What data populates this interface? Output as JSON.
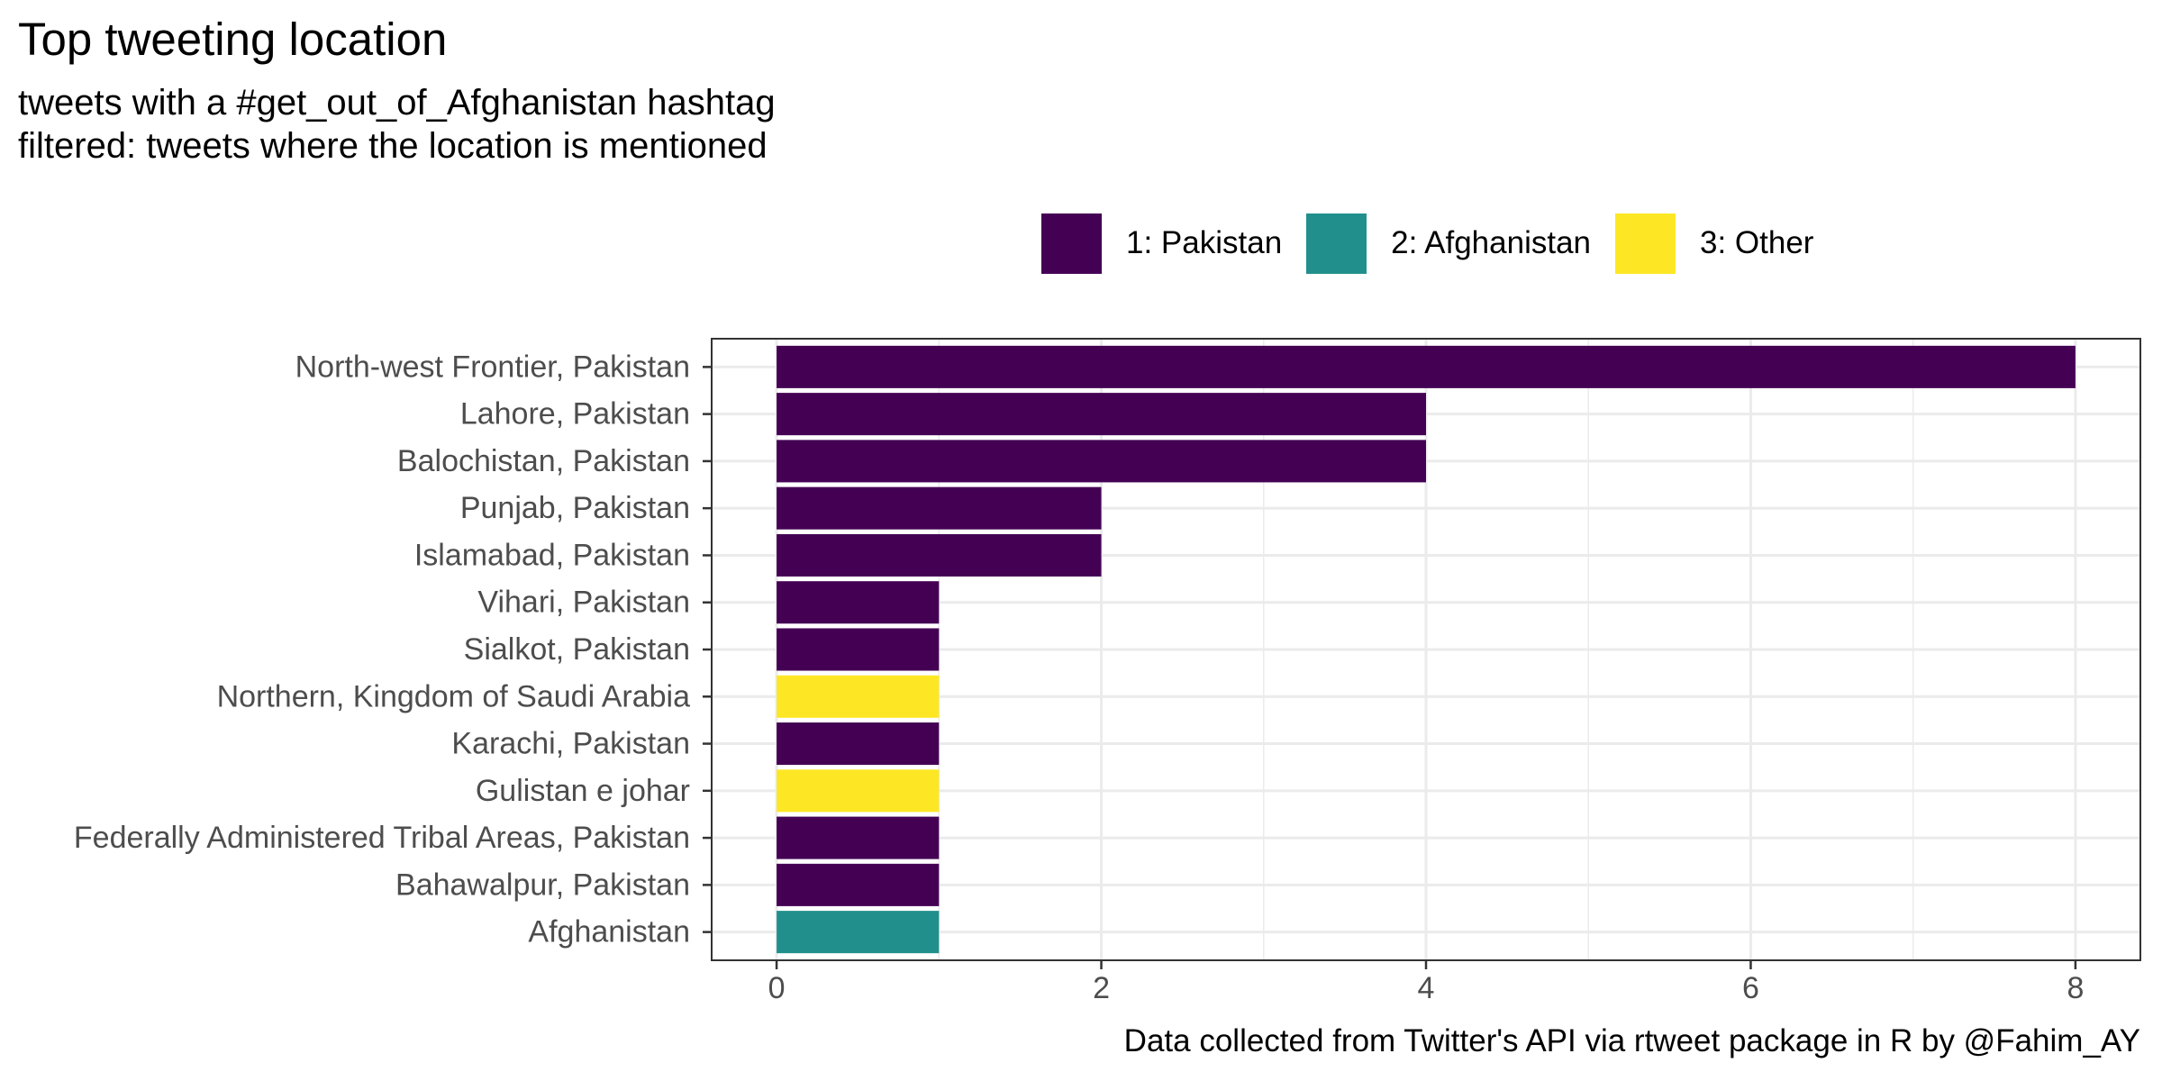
{
  "title": "Top tweeting location",
  "subtitle_lines": [
    "tweets with a #get_out_of_Afghanistan hashtag",
    "filtered: tweets where the location is mentioned"
  ],
  "caption": "Data collected from Twitter's API via rtweet package in R by @Fahim_AY",
  "legend": [
    {
      "label": "1: Pakistan",
      "color": "#440154"
    },
    {
      "label": "2: Afghanistan",
      "color": "#21908C"
    },
    {
      "label": "3: Other",
      "color": "#FDE725"
    }
  ],
  "chart_data": {
    "type": "bar",
    "orientation": "horizontal",
    "title": "Top tweeting location",
    "subtitle": "tweets with a #get_out_of_Afghanistan hashtag\nfiltered: tweets where the location is mentioned",
    "xlabel": "",
    "ylabel": "",
    "xlim": [
      -0.4,
      8.4
    ],
    "x_ticks": [
      0,
      2,
      4,
      6,
      8
    ],
    "grid": true,
    "legend_position": "top-right",
    "categories": [
      "North-west Frontier, Pakistan",
      "Lahore, Pakistan",
      "Balochistan, Pakistan",
      "Punjab, Pakistan",
      "Islamabad, Pakistan",
      "Vihari, Pakistan",
      "Sialkot, Pakistan",
      "Northern, Kingdom of Saudi Arabia",
      "Karachi, Pakistan",
      "Gulistan e johar",
      "Federally Administered Tribal Areas, Pakistan",
      "Bahawalpur, Pakistan",
      "Afghanistan"
    ],
    "values": [
      8,
      4,
      4,
      2,
      2,
      1,
      1,
      1,
      1,
      1,
      1,
      1,
      1
    ],
    "groups": [
      "1: Pakistan",
      "1: Pakistan",
      "1: Pakistan",
      "1: Pakistan",
      "1: Pakistan",
      "1: Pakistan",
      "1: Pakistan",
      "3: Other",
      "1: Pakistan",
      "3: Other",
      "1: Pakistan",
      "1: Pakistan",
      "2: Afghanistan"
    ]
  }
}
